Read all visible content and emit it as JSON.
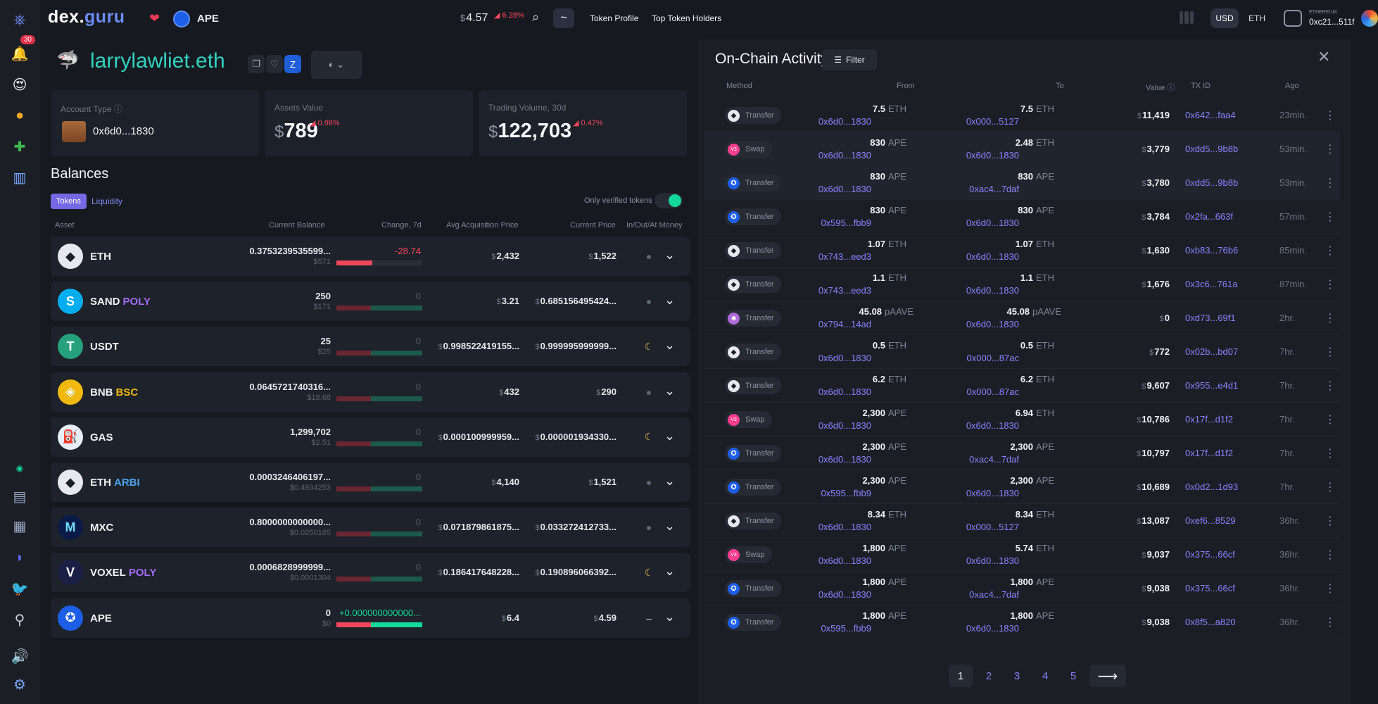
{
  "colors": {
    "accent": "#7468e5",
    "positive": "#14d89a",
    "negative": "#f0475d",
    "link": "#8a83ff",
    "ens": "#32d2c0"
  },
  "sidebar": {
    "notifications_badge": "30",
    "icons": [
      "bell-icon",
      "smile-icon",
      "coins-icon",
      "puzzle-icon",
      "chart-icon",
      "status-dot-icon",
      "document-icon",
      "document-icon",
      "discord-icon",
      "twitter-icon",
      "joystick-icon",
      "sound-icon",
      "gear-icon"
    ]
  },
  "topbar": {
    "logo_main": "dex.",
    "logo_accent": "guru",
    "token_symbol": "APE",
    "price_currency": "$",
    "price": "4.57",
    "price_change": "6.28%",
    "tilde": "~",
    "links": [
      "Token Profile",
      "Top Token Holders"
    ],
    "currency_usd": "USD",
    "currency_eth": "ETH",
    "network": "ETHEREUM",
    "wallet_address": "0xc21...511f"
  },
  "account": {
    "name": "larrylawliet.eth",
    "cards": {
      "account_type_label": "Account Type",
      "account_address": "0x6d0...1830",
      "assets_label": "Assets Value",
      "assets_value": "789",
      "assets_change": "0.98%",
      "volume_label": "Trading Volume, 30d",
      "volume_value": "122,703",
      "volume_change": "0.47%",
      "currency": "$"
    }
  },
  "balances": {
    "title": "Balances",
    "tab_tokens": "Tokens",
    "tab_liquidity": "Liquidity",
    "verified_label": "Only verified tokens",
    "headers": [
      "Asset",
      "Current Balance",
      "Change, 7d",
      "Avg Acquisition Price",
      "Current Price",
      "In/Out/At Money"
    ],
    "rows": [
      {
        "name": "ETH",
        "chain": "",
        "icon_bg": "#e6e8ee",
        "icon_fg": "#1b1e25",
        "glyph": "◆",
        "amount": "0.3753239535599...",
        "usd": "$571",
        "change": "-28.74",
        "change_color": "#f0475d",
        "neg_frac": 0.42,
        "avg": "2,432",
        "price": "1,522",
        "money": "●"
      },
      {
        "name": "SAND",
        "chain": "POLY",
        "chain_color": "#a36bff",
        "icon_bg": "#00adef",
        "icon_fg": "#fff",
        "glyph": "S",
        "amount": "250",
        "usd": "$171",
        "change": "0",
        "change_color": "#545b69",
        "neg_frac": 0.4,
        "avg": "3.21",
        "price": "0.685156495424...",
        "money": "●"
      },
      {
        "name": "USDT",
        "chain": "",
        "icon_bg": "#26a17b",
        "icon_fg": "#fff",
        "glyph": "T",
        "amount": "25",
        "usd": "$25",
        "change": "0",
        "change_color": "#545b69",
        "neg_frac": 0.4,
        "avg": "0.998522419155...",
        "price": "0.999995999999...",
        "money": "☾"
      },
      {
        "name": "BNB",
        "chain": "BSC",
        "chain_color": "#f0b90b",
        "icon_bg": "#f0b90b",
        "icon_fg": "#fff",
        "glyph": "◈",
        "amount": "0.0645721740316...",
        "usd": "$18.68",
        "change": "0",
        "change_color": "#545b69",
        "neg_frac": 0.4,
        "avg": "432",
        "price": "290",
        "money": "●"
      },
      {
        "name": "GAS",
        "chain": "",
        "icon_bg": "#e6eef8",
        "icon_fg": "#2e66b4",
        "glyph": "⛽",
        "amount": "1,299,702",
        "usd": "$2.51",
        "change": "0",
        "change_color": "#545b69",
        "neg_frac": 0.4,
        "avg": "0.000100999959...",
        "price": "0.000001934330...",
        "money": "☾"
      },
      {
        "name": "ETH",
        "chain": "ARBI",
        "chain_color": "#4aa3f0",
        "icon_bg": "#e6e8ee",
        "icon_fg": "#1b1e25",
        "glyph": "◆",
        "amount": "0.0003246406197...",
        "usd": "$0.4934253",
        "change": "0",
        "change_color": "#545b69",
        "neg_frac": 0.4,
        "avg": "4,140",
        "price": "1,521",
        "money": "●"
      },
      {
        "name": "MXC",
        "chain": "",
        "icon_bg": "#0b1b47",
        "icon_fg": "#6fdcff",
        "glyph": "M",
        "amount": "0.8000000000000...",
        "usd": "$0.0250165",
        "change": "0",
        "change_color": "#545b69",
        "neg_frac": 0.4,
        "avg": "0.071879861875...",
        "price": "0.033272412733...",
        "money": "●"
      },
      {
        "name": "VOXEL",
        "chain": "POLY",
        "chain_color": "#a36bff",
        "icon_bg": "#1a1f46",
        "icon_fg": "#fff",
        "glyph": "V",
        "amount": "0.0006828999999...",
        "usd": "$0.0001304",
        "change": "0",
        "change_color": "#545b69",
        "neg_frac": 0.4,
        "avg": "0.186417648228...",
        "price": "0.190896066392...",
        "money": "☾"
      },
      {
        "name": "APE",
        "chain": "",
        "icon_bg": "#1d5ee8",
        "icon_fg": "#fff",
        "glyph": "✪",
        "amount": "0",
        "usd": "$0",
        "change": "+0.000000000000...",
        "change_color": "#14d89a",
        "neg_frac": 0.4,
        "avg": "6.4",
        "price": "4.59",
        "money": "–",
        "bright": true
      }
    ]
  },
  "activity": {
    "title": "On-Chain Activity",
    "filter_label": "Filter",
    "headers": {
      "method": "Method",
      "from": "From",
      "to": "To",
      "value": "Value",
      "txid": "TX ID",
      "ago": "Ago"
    },
    "rows": [
      {
        "method": "Transfer",
        "icon": "eth",
        "from_amt": "7.5",
        "from_sym": "ETH",
        "from_addr": "0x6d0...1830",
        "to_amt": "7.5",
        "to_sym": "ETH",
        "to_addr": "0x000...5127",
        "value": "11,419",
        "txid": "0x642...faa4",
        "ago": "23min."
      },
      {
        "method": "Swap",
        "icon": "swap",
        "from_amt": "830",
        "from_sym": "APE",
        "from_addr": "0x6d0...1830",
        "to_amt": "2.48",
        "to_sym": "ETH",
        "to_addr": "0x6d0...1830",
        "value": "3,779",
        "txid": "0xdd5...9b8b",
        "ago": "53min.",
        "highlight": true
      },
      {
        "method": "Transfer",
        "icon": "ape",
        "from_amt": "830",
        "from_sym": "APE",
        "from_addr": "0x6d0...1830",
        "to_amt": "830",
        "to_sym": "APE",
        "to_addr": "0xac4...7daf",
        "value": "3,780",
        "txid": "0xdd5...9b8b",
        "ago": "53min.",
        "highlight": true
      },
      {
        "method": "Transfer",
        "icon": "ape",
        "from_amt": "830",
        "from_sym": "APE",
        "from_addr": "0x595...fbb9",
        "to_amt": "830",
        "to_sym": "APE",
        "to_addr": "0x6d0...1830",
        "value": "3,784",
        "txid": "0x2fa...663f",
        "ago": "57min."
      },
      {
        "method": "Transfer",
        "icon": "eth",
        "from_amt": "1.07",
        "from_sym": "ETH",
        "from_addr": "0x743...eed3",
        "to_amt": "1.07",
        "to_sym": "ETH",
        "to_addr": "0x6d0...1830",
        "value": "1,630",
        "txid": "0xb83...76b6",
        "ago": "85min."
      },
      {
        "method": "Transfer",
        "icon": "eth",
        "from_amt": "1.1",
        "from_sym": "ETH",
        "from_addr": "0x743...eed3",
        "to_amt": "1.1",
        "to_sym": "ETH",
        "to_addr": "0x6d0...1830",
        "value": "1,676",
        "txid": "0x3c6...761a",
        "ago": "87min."
      },
      {
        "method": "Transfer",
        "icon": "pape",
        "from_amt": "45.08",
        "from_sym": "pAAVE",
        "from_addr": "0x794...14ad",
        "to_amt": "45.08",
        "to_sym": "pAAVE",
        "to_addr": "0x6d0...1830",
        "value": "0",
        "txid": "0xd73...69f1",
        "ago": "2hr."
      },
      {
        "method": "Transfer",
        "icon": "eth",
        "from_amt": "0.5",
        "from_sym": "ETH",
        "from_addr": "0x6d0...1830",
        "to_amt": "0.5",
        "to_sym": "ETH",
        "to_addr": "0x000...87ac",
        "value": "772",
        "txid": "0x02b...bd07",
        "ago": "7hr."
      },
      {
        "method": "Transfer",
        "icon": "eth",
        "from_amt": "6.2",
        "from_sym": "ETH",
        "from_addr": "0x6d0...1830",
        "to_amt": "6.2",
        "to_sym": "ETH",
        "to_addr": "0x000...87ac",
        "value": "9,607",
        "txid": "0x955...e4d1",
        "ago": "7hr."
      },
      {
        "method": "Swap",
        "icon": "swap",
        "from_amt": "2,300",
        "from_sym": "APE",
        "from_addr": "0x6d0...1830",
        "to_amt": "6.94",
        "to_sym": "ETH",
        "to_addr": "0x6d0...1830",
        "value": "10,786",
        "txid": "0x17f...d1f2",
        "ago": "7hr."
      },
      {
        "method": "Transfer",
        "icon": "ape",
        "from_amt": "2,300",
        "from_sym": "APE",
        "from_addr": "0x6d0...1830",
        "to_amt": "2,300",
        "to_sym": "APE",
        "to_addr": "0xac4...7daf",
        "value": "10,797",
        "txid": "0x17f...d1f2",
        "ago": "7hr."
      },
      {
        "method": "Transfer",
        "icon": "ape",
        "from_amt": "2,300",
        "from_sym": "APE",
        "from_addr": "0x595...fbb9",
        "to_amt": "2,300",
        "to_sym": "APE",
        "to_addr": "0x6d0...1830",
        "value": "10,689",
        "txid": "0x0d2...1d93",
        "ago": "7hr."
      },
      {
        "method": "Transfer",
        "icon": "eth",
        "from_amt": "8.34",
        "from_sym": "ETH",
        "from_addr": "0x6d0...1830",
        "to_amt": "8.34",
        "to_sym": "ETH",
        "to_addr": "0x000...5127",
        "value": "13,087",
        "txid": "0xef6...8529",
        "ago": "36hr."
      },
      {
        "method": "Swap",
        "icon": "swap",
        "from_amt": "1,800",
        "from_sym": "APE",
        "from_addr": "0x6d0...1830",
        "to_amt": "5.74",
        "to_sym": "ETH",
        "to_addr": "0x6d0...1830",
        "value": "9,037",
        "txid": "0x375...66cf",
        "ago": "36hr."
      },
      {
        "method": "Transfer",
        "icon": "ape",
        "from_amt": "1,800",
        "from_sym": "APE",
        "from_addr": "0x6d0...1830",
        "to_amt": "1,800",
        "to_sym": "APE",
        "to_addr": "0xac4...7daf",
        "value": "9,038",
        "txid": "0x375...66cf",
        "ago": "36hr."
      },
      {
        "method": "Transfer",
        "icon": "ape",
        "from_amt": "1,800",
        "from_sym": "APE",
        "from_addr": "0x595...fbb9",
        "to_amt": "1,800",
        "to_sym": "APE",
        "to_addr": "0x6d0...1830",
        "value": "9,038",
        "txid": "0x8f5...a820",
        "ago": "36hr."
      }
    ],
    "pages": [
      "1",
      "2",
      "3",
      "4",
      "5"
    ],
    "next": "⟶"
  }
}
